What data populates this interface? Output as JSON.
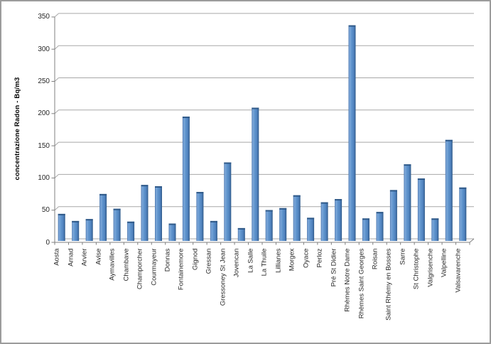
{
  "frame": {
    "background": "#ffffff",
    "border_color": "#9c9c9c"
  },
  "chart_data": {
    "type": "bar",
    "title": "",
    "xlabel": "",
    "ylabel": "concentrazione Radon - Bq/m3",
    "ylim": [
      0,
      350
    ],
    "ytick_step": 50,
    "yticks": [
      0,
      50,
      100,
      150,
      200,
      250,
      300,
      350
    ],
    "grid": "horizontal",
    "legend_position": "none",
    "bar_color": "#4f81bd",
    "bar_edge_color": "#2f5988",
    "gridline_color": "#a8a8a8",
    "axis_color": "#7f7f7f",
    "categories": [
      "Aosta",
      "Arnad",
      "Arvier",
      "Avise",
      "Aymavilles",
      "Chambave",
      "Champorcher",
      "Courmayeur",
      "Donnas",
      "Fontainemore",
      "Gignod",
      "Gressan",
      "Gressoney St Jean",
      "Jovencan",
      "La Salle",
      "La Thuile",
      "Lillianes",
      "Morgex",
      "Oyace",
      "Perloz",
      "Pré St Didier",
      "Rhèmes Notre Dame",
      "Rhèmes Saint Georges",
      "Roisan",
      "Saint Rhémy en Bosses",
      "Sarre",
      "St Christophe",
      "Valgrisenche",
      "Valpelline",
      "Valsavarenche"
    ],
    "values": [
      42,
      31,
      34,
      73,
      50,
      30,
      87,
      85,
      27,
      193,
      76,
      31,
      122,
      20,
      207,
      48,
      51,
      71,
      36,
      60,
      65,
      335,
      35,
      45,
      79,
      119,
      97,
      35,
      157,
      83
    ]
  }
}
